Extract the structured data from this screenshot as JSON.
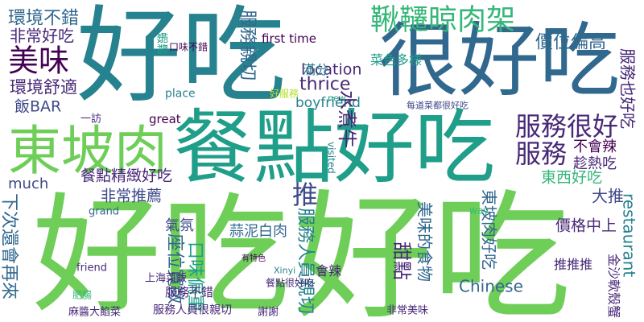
{
  "words": [
    "好吃",
    "很好吃",
    "餐點好吃",
    "東坡肉",
    "好吃",
    "好吃",
    "美味",
    "環境不錯",
    "非常好吃",
    "環境舒適",
    "飯BAR",
    "鞦韆晾肉架",
    "價位偏高",
    "服務很好",
    "服務",
    "first time",
    "location",
    "thrice",
    "boyfriend",
    "推",
    "餐點精緻好吃",
    "非常推薦",
    "much",
    "服務也好吃",
    "restaurant",
    "Chinese",
    "大推",
    "價格中上",
    "東西好吃",
    "甜點",
    "下次還會再來",
    "蒜泥白肉",
    "氣氛",
    "會辣",
    "菜色多樣",
    "滿分",
    "服務親切",
    "水煮牛",
    "東坡肉好吃",
    "座位寬敞",
    "口味偏重",
    "服務人員親切",
    "美味的食物",
    "不會辣",
    "趁熱吃",
    "服務不錯",
    "上海菜飯",
    "推推推",
    "金沙軟殼蟹",
    "謝謝",
    "非常美味",
    "服務人員很親切",
    "麻醬大餡菜",
    "肥腸",
    "great",
    "friend",
    "grand",
    "place",
    "visited",
    "way",
    "new",
    "口味不錯",
    "一訪",
    "Xinyi",
    "有特色",
    "餐點很好吃",
    "好服務",
    "蝦鬆",
    "每道菜都很好吃"
  ]
}
